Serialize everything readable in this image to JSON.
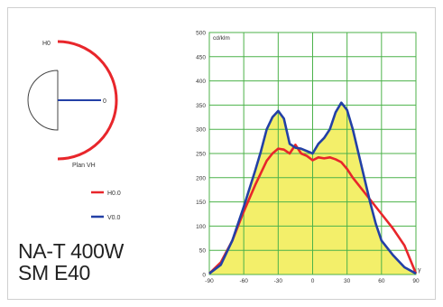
{
  "colors": {
    "h_series": "#e8262b",
    "v_series": "#2340a6",
    "fill": "#f3ef6a",
    "grid": "#4cb24a",
    "axis_text": "#333333"
  },
  "polar_diagram": {
    "label_top": "H0",
    "label_right": "0",
    "plane_caption": "Plan VH"
  },
  "legend": [
    {
      "name": "H0.0",
      "color": "#e8262b"
    },
    {
      "name": "V0.0",
      "color": "#2340a6"
    }
  ],
  "product": {
    "line1": "NA-T 400W",
    "line2": "SM E40"
  },
  "chart_data": {
    "type": "line",
    "ylabel": "cd/klm",
    "xlabel": "",
    "xlim": [
      -90,
      90
    ],
    "ylim": [
      0,
      500
    ],
    "x_ticks": [
      -90,
      -60,
      -30,
      0,
      30,
      60,
      90
    ],
    "y_ticks": [
      0,
      50,
      100,
      150,
      200,
      250,
      300,
      350,
      400,
      450,
      500
    ],
    "x_tick_labels": [
      "-90",
      "-60",
      "-30",
      "0",
      "30",
      "60",
      "90"
    ],
    "y_tick_labels": [
      "0",
      "50",
      "100",
      "150",
      "200",
      "250",
      "300",
      "350",
      "400",
      "450",
      "500"
    ],
    "corner_label": "γ",
    "grid": true,
    "fill_under": "V0.0",
    "series": [
      {
        "name": "H0.0",
        "x": [
          -90,
          -80,
          -70,
          -60,
          -50,
          -45,
          -40,
          -35,
          -30,
          -25,
          -20,
          -15,
          -10,
          -5,
          0,
          5,
          10,
          15,
          20,
          25,
          30,
          35,
          40,
          45,
          50,
          60,
          70,
          80,
          90
        ],
        "values": [
          2,
          25,
          70,
          130,
          185,
          210,
          235,
          250,
          260,
          258,
          250,
          268,
          250,
          245,
          236,
          242,
          240,
          242,
          238,
          232,
          218,
          200,
          185,
          170,
          155,
          125,
          95,
          60,
          2
        ]
      },
      {
        "name": "V0.0",
        "x": [
          -90,
          -80,
          -70,
          -60,
          -50,
          -45,
          -40,
          -35,
          -30,
          -25,
          -20,
          -15,
          -10,
          -5,
          0,
          5,
          10,
          15,
          20,
          25,
          30,
          35,
          40,
          45,
          50,
          55,
          60,
          70,
          80,
          90
        ],
        "values": [
          2,
          20,
          70,
          140,
          215,
          255,
          300,
          325,
          338,
          322,
          270,
          262,
          260,
          255,
          250,
          270,
          282,
          300,
          335,
          355,
          340,
          300,
          250,
          200,
          150,
          105,
          70,
          40,
          15,
          2
        ]
      }
    ]
  }
}
